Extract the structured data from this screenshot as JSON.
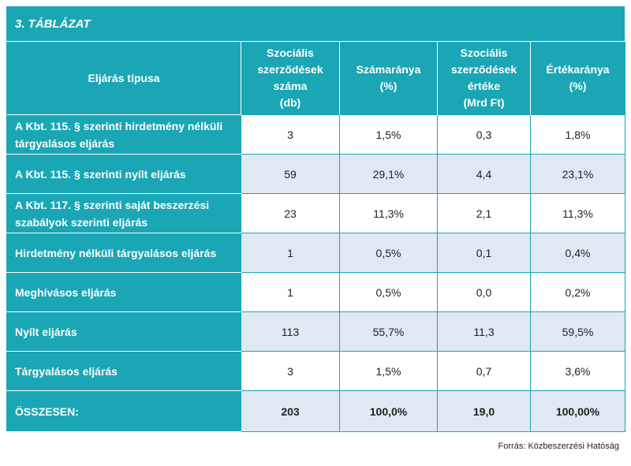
{
  "table_caption": "3. TÁBLÁZAT",
  "headers": [
    "Eljárás típusa",
    "Szociális\nszerződések\nszáma\n(db)",
    "Számaránya\n(%)",
    "Szociális\nszerződések\nértéke\n(Mrd Ft)",
    "Értékaránya\n(%)"
  ],
  "rows": [
    {
      "label": "A Kbt. 115. § szerinti hirdetmény nélküli tárgyalásos eljárás",
      "count": "3",
      "count_share": "1,5%",
      "value": "0,3",
      "value_share": "1,8%"
    },
    {
      "label": "A Kbt. 115. § szerinti nyílt eljárás",
      "count": "59",
      "count_share": "29,1%",
      "value": "4,4",
      "value_share": "23,1%"
    },
    {
      "label": "A Kbt. 117. § szerinti saját beszerzési szabályok szerinti eljárás",
      "count": "23",
      "count_share": "11,3%",
      "value": "2,1",
      "value_share": "11,3%"
    },
    {
      "label": "Hirdetmény nélküli tárgyalásos eljárás",
      "count": "1",
      "count_share": "0,5%",
      "value": "0,1",
      "value_share": "0,4%"
    },
    {
      "label": "Meghívásos eljárás",
      "count": "1",
      "count_share": "0,5%",
      "value": "0,0",
      "value_share": "0,2%"
    },
    {
      "label": "Nyílt eljárás",
      "count": "113",
      "count_share": "55,7%",
      "value": "11,3",
      "value_share": "59,5%"
    },
    {
      "label": "Tárgyalásos eljárás",
      "count": "3",
      "count_share": "1,5%",
      "value": "0,7",
      "value_share": "3,6%"
    }
  ],
  "total": {
    "label": "ÖSSZESEN:",
    "count": "203",
    "count_share": "100,0%",
    "value": "19,0",
    "value_share": "100,00%"
  },
  "source": "Forrás: Közbeszerzési Hatóság",
  "colors": {
    "header_teal": "#1aa6b5",
    "stripe_blue": "#dfe8f3"
  }
}
